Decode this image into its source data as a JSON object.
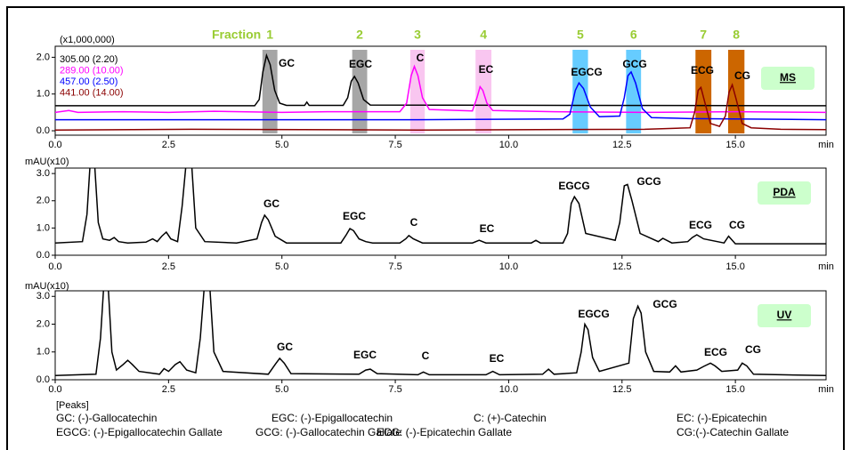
{
  "chart_data": [
    {
      "type": "line",
      "panel_label": "MS",
      "y_unit_label": "(x1,000,000)",
      "x_unit_label": "min",
      "fraction_label": "Fraction",
      "fractions": [
        {
          "label": "1",
          "color": "#a6a6a6",
          "range": [
            4.57,
            4.9
          ]
        },
        {
          "label": "2",
          "color": "#a6a6a6",
          "range": [
            6.55,
            6.88
          ]
        },
        {
          "label": "3",
          "color": "#f9c6f0",
          "range": [
            7.83,
            8.15
          ]
        },
        {
          "label": "4",
          "color": "#f9c6f0",
          "range": [
            9.27,
            9.62
          ]
        },
        {
          "label": "5",
          "color": "#66ccff",
          "range": [
            11.41,
            11.75
          ]
        },
        {
          "label": "6",
          "color": "#66ccff",
          "range": [
            12.59,
            12.92
          ]
        },
        {
          "label": "7",
          "color": "#cc6600",
          "range": [
            14.12,
            14.47
          ]
        },
        {
          "label": "8",
          "color": "#cc6600",
          "range": [
            14.84,
            15.2
          ]
        }
      ],
      "xlim": [
        0,
        17
      ],
      "xticks": [
        {
          "value": 0,
          "label": "0.0"
        },
        2.5,
        {
          "value": 5,
          "label": "5.0"
        },
        7.5,
        {
          "value": 10,
          "label": "10.0"
        },
        12.5,
        {
          "value": 15,
          "label": "15.0"
        }
      ],
      "ylim": [
        -0.12,
        2.3
      ],
      "yticks": [
        {
          "value": 0,
          "label": "0.0"
        },
        {
          "value": 1,
          "label": "1.0"
        },
        {
          "value": 2,
          "label": "2.0"
        }
      ],
      "annotations": [
        "GC",
        "EGC",
        "C",
        "EC",
        "EGCG",
        "GCG",
        "ECG",
        "CG"
      ],
      "series": [
        {
          "name": "305.00 (2.20)",
          "color": "#000000",
          "x": [
            0,
            4.4,
            4.5,
            4.58,
            4.66,
            4.74,
            4.84,
            4.95,
            5.1,
            5.5,
            5.55,
            5.6,
            6.35,
            6.45,
            6.53,
            6.6,
            6.68,
            6.8,
            6.95,
            17
          ],
          "values": [
            0.68,
            0.68,
            0.85,
            1.6,
            2.05,
            1.8,
            1.1,
            0.75,
            0.69,
            0.69,
            0.78,
            0.69,
            0.69,
            0.9,
            1.35,
            1.48,
            1.3,
            0.85,
            0.7,
            0.68
          ]
        },
        {
          "name": "289.00 (10.00)",
          "color": "#ff00ff",
          "x": [
            0,
            0.3,
            0.5,
            1.5,
            2.5,
            3.5,
            5,
            6,
            7.6,
            7.75,
            7.85,
            7.92,
            8.0,
            8.1,
            8.25,
            9.2,
            9.3,
            9.37,
            9.43,
            9.52,
            9.65,
            11,
            13,
            15,
            17
          ],
          "values": [
            0.5,
            0.55,
            0.5,
            0.52,
            0.5,
            0.53,
            0.5,
            0.52,
            0.52,
            0.75,
            1.5,
            1.75,
            1.5,
            0.9,
            0.58,
            0.54,
            0.9,
            1.2,
            1.1,
            0.75,
            0.55,
            0.52,
            0.5,
            0.52,
            0.5
          ]
        },
        {
          "name": "457.00 (2.50)",
          "color": "#0000ff",
          "x": [
            0,
            4,
            8,
            11.2,
            11.35,
            11.47,
            11.55,
            11.65,
            11.8,
            12.0,
            12.45,
            12.55,
            12.63,
            12.7,
            12.8,
            12.95,
            13.15,
            14,
            17
          ],
          "values": [
            0.3,
            0.3,
            0.3,
            0.32,
            0.45,
            1.1,
            1.3,
            1.15,
            0.65,
            0.38,
            0.4,
            0.9,
            1.5,
            1.6,
            1.3,
            0.6,
            0.36,
            0.33,
            0.3
          ]
        },
        {
          "name": "441.00 (14.00)",
          "color": "#8b0000",
          "x": [
            0,
            3,
            8,
            13,
            14.0,
            14.1,
            14.18,
            14.24,
            14.32,
            14.45,
            14.65,
            14.78,
            14.86,
            14.93,
            15.02,
            15.15,
            15.35,
            16,
            17
          ],
          "values": [
            0.02,
            0.04,
            0.02,
            0.04,
            0.08,
            0.5,
            1.1,
            1.18,
            0.8,
            0.2,
            0.12,
            0.4,
            1.05,
            1.25,
            0.85,
            0.2,
            0.08,
            0.04,
            0.03
          ]
        }
      ]
    },
    {
      "type": "line",
      "panel_label": "PDA",
      "y_unit_label": "mAU(x10)",
      "x_unit_label": "min",
      "xlim": [
        0,
        17
      ],
      "xticks": [
        {
          "value": 0,
          "label": "0.0"
        },
        2.5,
        {
          "value": 5,
          "label": "5.0"
        },
        7.5,
        {
          "value": 10,
          "label": "10.0"
        },
        12.5,
        {
          "value": 15,
          "label": "15.0"
        }
      ],
      "ylim": [
        0,
        3.2
      ],
      "yticks": [
        {
          "value": 0,
          "label": "0.0"
        },
        {
          "value": 1,
          "label": "1.0"
        },
        {
          "value": 2,
          "label": "2.0"
        },
        {
          "value": 3,
          "label": "3.0"
        }
      ],
      "annotations": [
        "GC",
        "EGC",
        "C",
        "EC",
        "EGCG",
        "GCG",
        "ECG",
        "CG"
      ],
      "series": [
        {
          "color": "#000000",
          "x": [
            0,
            0.6,
            0.7,
            0.78,
            0.86,
            0.95,
            1.05,
            1.2,
            1.3,
            1.4,
            1.6,
            2.0,
            2.15,
            2.25,
            2.35,
            2.45,
            2.55,
            2.7,
            2.8,
            2.9,
            3.0,
            3.1,
            3.3,
            4.0,
            4.45,
            4.55,
            4.62,
            4.7,
            4.85,
            5.1,
            6.3,
            6.42,
            6.5,
            6.58,
            6.7,
            6.85,
            7.0,
            7.6,
            7.73,
            7.8,
            7.9,
            8.1,
            9.2,
            9.35,
            9.5,
            10.5,
            10.6,
            10.7,
            11.2,
            11.3,
            11.38,
            11.45,
            11.55,
            11.7,
            12.35,
            12.45,
            12.55,
            12.62,
            12.72,
            12.9,
            13.3,
            13.4,
            13.6,
            13.95,
            14.05,
            14.15,
            14.3,
            14.75,
            14.85,
            15.0,
            17
          ],
          "values": [
            0.45,
            0.5,
            1.5,
            3.6,
            3.6,
            1.2,
            0.6,
            0.55,
            0.65,
            0.5,
            0.45,
            0.48,
            0.6,
            0.5,
            0.7,
            0.85,
            0.6,
            0.5,
            1.8,
            3.6,
            3.6,
            1.0,
            0.5,
            0.45,
            0.6,
            1.2,
            1.47,
            1.3,
            0.7,
            0.45,
            0.45,
            0.75,
            0.98,
            0.9,
            0.6,
            0.5,
            0.45,
            0.45,
            0.6,
            0.72,
            0.6,
            0.45,
            0.45,
            0.55,
            0.45,
            0.45,
            0.55,
            0.45,
            0.45,
            0.8,
            1.9,
            2.15,
            1.9,
            0.8,
            0.55,
            1.2,
            2.55,
            2.6,
            2.0,
            0.8,
            0.5,
            0.62,
            0.45,
            0.5,
            0.65,
            0.75,
            0.6,
            0.45,
            0.7,
            0.42,
            0.42
          ]
        }
      ]
    },
    {
      "type": "line",
      "panel_label": "UV",
      "y_unit_label": "mAU(x10)",
      "x_unit_label": "min",
      "xlim": [
        0,
        17
      ],
      "xticks": [
        {
          "value": 0,
          "label": "0.0"
        },
        2.5,
        {
          "value": 5,
          "label": "5.0"
        },
        7.5,
        {
          "value": 10,
          "label": "10.0"
        },
        12.5,
        {
          "value": 15,
          "label": "15.0"
        }
      ],
      "ylim": [
        0,
        3.2
      ],
      "yticks": [
        {
          "value": 0,
          "label": "0.0"
        },
        {
          "value": 1,
          "label": "1.0"
        },
        {
          "value": 2,
          "label": "2.0"
        },
        {
          "value": 3,
          "label": "3.0"
        }
      ],
      "annotations": [
        "GC",
        "EGC",
        "C",
        "EC",
        "EGCG",
        "GCG",
        "ECG",
        "CG"
      ],
      "series": [
        {
          "color": "#000000",
          "x": [
            0,
            0.9,
            1.0,
            1.08,
            1.16,
            1.25,
            1.35,
            1.5,
            1.6,
            1.7,
            1.85,
            2.3,
            2.4,
            2.5,
            2.65,
            2.75,
            2.9,
            3.1,
            3.2,
            3.3,
            3.4,
            3.5,
            3.7,
            4.7,
            4.85,
            4.95,
            5.05,
            5.2,
            6.7,
            6.85,
            6.95,
            7.1,
            8.0,
            8.12,
            8.25,
            9.5,
            9.65,
            9.8,
            10.75,
            10.88,
            11.0,
            11.5,
            11.6,
            11.68,
            11.75,
            11.85,
            12.0,
            12.65,
            12.75,
            12.85,
            12.92,
            13.02,
            13.2,
            13.55,
            13.68,
            13.8,
            14.15,
            14.3,
            14.45,
            14.55,
            14.7,
            15.05,
            15.15,
            15.25,
            15.4,
            17
          ],
          "values": [
            0.15,
            0.2,
            1.5,
            3.6,
            3.6,
            1.0,
            0.35,
            0.55,
            0.7,
            0.55,
            0.3,
            0.2,
            0.4,
            0.3,
            0.55,
            0.65,
            0.35,
            0.25,
            1.5,
            3.6,
            3.6,
            1.0,
            0.3,
            0.2,
            0.55,
            0.77,
            0.6,
            0.22,
            0.2,
            0.35,
            0.38,
            0.22,
            0.18,
            0.28,
            0.18,
            0.18,
            0.3,
            0.18,
            0.2,
            0.38,
            0.2,
            0.25,
            1.0,
            2.0,
            1.8,
            0.8,
            0.3,
            0.6,
            2.2,
            2.65,
            2.4,
            1.0,
            0.3,
            0.28,
            0.5,
            0.28,
            0.35,
            0.48,
            0.6,
            0.5,
            0.3,
            0.35,
            0.6,
            0.5,
            0.2,
            0.15
          ]
        }
      ]
    }
  ],
  "peaks": {
    "title": "[Peaks]",
    "items": [
      "GC: (-)-Gallocatechin",
      "EGC: (-)-Epigallocatechin",
      "C: (+)-Catechin",
      "EC: (-)-Epicatechin",
      "EGCG: (-)-Epigallocatechin Gallate",
      "GCG: (-)-Gallocatechin Gallate",
      "ECG: (-)-Epicatechin Gallate",
      "CG:(-)-Catechin Gallate"
    ]
  }
}
